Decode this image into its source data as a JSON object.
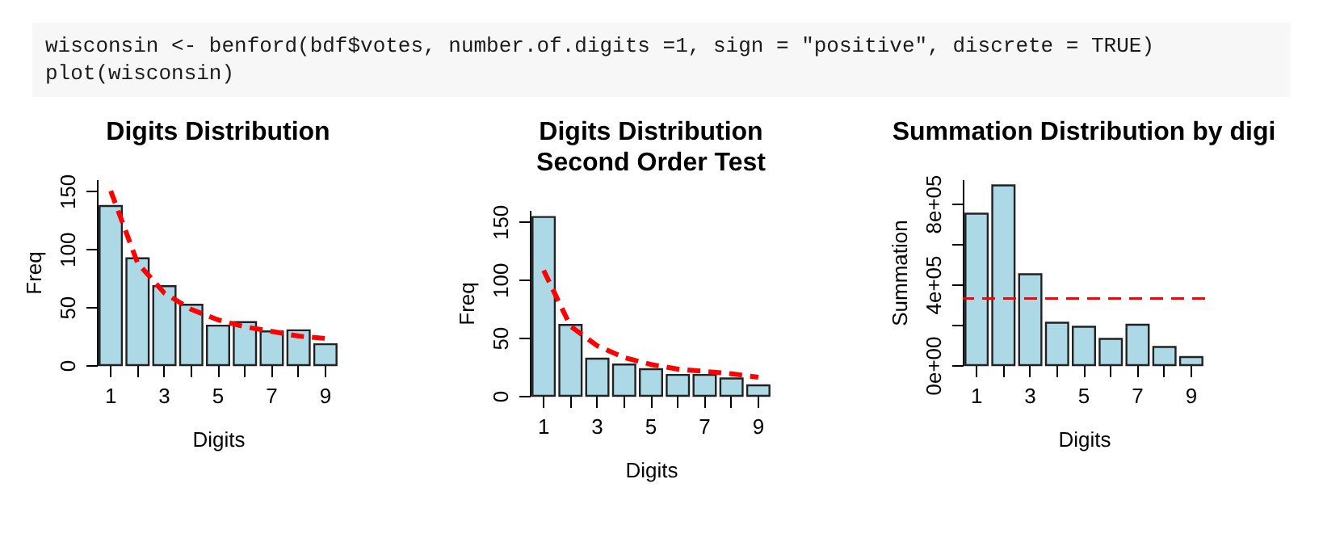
{
  "chart_data": [
    {
      "type": "other",
      "annotations": [
        "wisconsin <- benford(bdf$votes, number.of.digits =1, sign = \"positive\", discrete = TRUE)",
        "plot(wisconsin)"
      ]
    },
    {
      "type": "bar",
      "title": "Digits Distribution",
      "xlabel": "Digits",
      "ylabel": "Freq",
      "categories": [
        "1",
        null,
        "3",
        null,
        "5",
        null,
        "7",
        null,
        "9"
      ],
      "series": [
        {
          "type": "bar",
          "color": "#add8e6",
          "values": [
            137,
            92,
            68,
            52,
            34,
            37,
            29,
            30,
            18
          ]
        },
        {
          "type": "line",
          "color": "#ff0000",
          "line_style": "dashed",
          "values": [
            150,
            88,
            62,
            48,
            39,
            33,
            29,
            25,
            23
          ]
        }
      ],
      "ylim": [
        0,
        160
      ],
      "yticks": [
        0,
        50,
        100,
        150
      ]
    },
    {
      "type": "bar",
      "title": "Digits Distribution\nSecond Order Test",
      "xlabel": "Digits",
      "ylabel": "Freq",
      "categories": [
        "1",
        null,
        "3",
        null,
        "5",
        null,
        "7",
        null,
        "9"
      ],
      "series": [
        {
          "type": "bar",
          "color": "#add8e6",
          "values": [
            154,
            61,
            32,
            27,
            23,
            18,
            18,
            15,
            9
          ]
        },
        {
          "type": "line",
          "color": "#ff0000",
          "line_style": "dashed",
          "values": [
            108,
            60,
            43,
            33,
            27,
            23,
            21,
            19,
            16
          ]
        }
      ],
      "ylim": [
        0,
        160
      ],
      "yticks": [
        0,
        50,
        100,
        150
      ]
    },
    {
      "type": "bar",
      "title": "Summation Distribution by digi",
      "xlabel": "Digits",
      "ylabel": "Summation",
      "categories": [
        "1",
        null,
        "3",
        null,
        "5",
        null,
        "7",
        null,
        "9"
      ],
      "series": [
        {
          "type": "bar",
          "color": "#add8e6",
          "values": [
            750000,
            890000,
            450000,
            210000,
            190000,
            130000,
            200000,
            90000,
            40000
          ]
        }
      ],
      "ref_lines": [
        {
          "axis": "y",
          "value": 330000,
          "color": "#ff0000",
          "line_style": "dashed"
        }
      ],
      "ylim": [
        0,
        920000
      ],
      "yticks": [
        {
          "value": 0,
          "label": "0e+00"
        },
        {
          "value": 200000,
          "label": null
        },
        {
          "value": 400000,
          "label": "4e+05"
        },
        {
          "value": 600000,
          "label": null
        },
        {
          "value": 800000,
          "label": "8e+05"
        }
      ]
    }
  ]
}
